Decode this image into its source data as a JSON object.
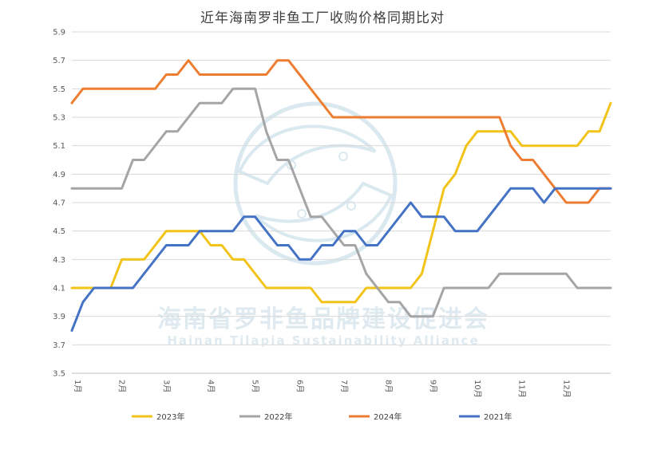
{
  "chart_data": {
    "type": "line",
    "title": "近年海南罗非鱼工厂收购价格同期比对",
    "xlabel": "",
    "ylabel": "",
    "ylim": [
      3.5,
      5.9
    ],
    "yticks": [
      "3.5",
      "3.7",
      "3.9",
      "4.1",
      "4.3",
      "4.5",
      "4.7",
      "4.9",
      "5.1",
      "5.3",
      "5.5",
      "5.7",
      "5.9"
    ],
    "x_tick_labels": [
      "1月",
      "2月",
      "3月",
      "4月",
      "5月",
      "6月",
      "7月",
      "8月",
      "9月",
      "10月",
      "11月",
      "12月"
    ],
    "x_unit": "week",
    "grid": true,
    "legend_position": "bottom",
    "series": [
      {
        "name": "2023年",
        "color": "#f2c318",
        "points": [
          [
            0,
            4.1
          ],
          [
            2.0,
            4.1
          ],
          [
            3.5,
            4.1
          ],
          [
            4.5,
            4.3
          ],
          [
            6.5,
            4.3
          ],
          [
            8.5,
            4.5
          ],
          [
            11.5,
            4.5
          ],
          [
            12.5,
            4.4
          ],
          [
            13.5,
            4.4
          ],
          [
            14.5,
            4.3
          ],
          [
            15.5,
            4.3
          ],
          [
            17.5,
            4.1
          ],
          [
            21.5,
            4.1
          ],
          [
            22.5,
            4.0
          ],
          [
            25.5,
            4.0
          ],
          [
            26.5,
            4.1
          ],
          [
            30.5,
            4.1
          ],
          [
            31.5,
            4.2
          ],
          [
            33.5,
            4.8
          ],
          [
            34.5,
            4.9
          ],
          [
            35.5,
            5.1
          ],
          [
            36.5,
            5.2
          ],
          [
            39.5,
            5.2
          ],
          [
            40.5,
            5.1
          ],
          [
            45.5,
            5.1
          ],
          [
            46.5,
            5.2
          ],
          [
            47.5,
            5.2
          ],
          [
            48.5,
            5.4
          ]
        ]
      },
      {
        "name": "2022年",
        "color": "#a5a5a5",
        "points": [
          [
            0,
            4.8
          ],
          [
            4.5,
            4.8
          ],
          [
            5.5,
            5.0
          ],
          [
            6.5,
            5.0
          ],
          [
            8.5,
            5.2
          ],
          [
            9.5,
            5.2
          ],
          [
            11.5,
            5.4
          ],
          [
            13.5,
            5.4
          ],
          [
            14.5,
            5.5
          ],
          [
            16.5,
            5.5
          ],
          [
            17.5,
            5.2
          ],
          [
            18.5,
            5.0
          ],
          [
            19.5,
            5.0
          ],
          [
            20.5,
            4.8
          ],
          [
            21.5,
            4.6
          ],
          [
            22.5,
            4.6
          ],
          [
            24.5,
            4.4
          ],
          [
            25.5,
            4.4
          ],
          [
            26.5,
            4.2
          ],
          [
            28.5,
            4.0
          ],
          [
            29.5,
            4.0
          ],
          [
            30.5,
            3.9
          ],
          [
            32.5,
            3.9
          ],
          [
            33.5,
            4.1
          ],
          [
            37.5,
            4.1
          ],
          [
            38.5,
            4.2
          ],
          [
            44.5,
            4.2
          ],
          [
            45.5,
            4.1
          ],
          [
            48.5,
            4.1
          ]
        ]
      },
      {
        "name": "2024年",
        "color": "#ed7d31",
        "points": [
          [
            0,
            5.4
          ],
          [
            1,
            5.5
          ],
          [
            7.5,
            5.5
          ],
          [
            8.5,
            5.6
          ],
          [
            9.5,
            5.6
          ],
          [
            10.5,
            5.7
          ],
          [
            11.5,
            5.6
          ],
          [
            17.5,
            5.6
          ],
          [
            18.5,
            5.7
          ],
          [
            19.5,
            5.7
          ],
          [
            23.5,
            5.3
          ],
          [
            38.5,
            5.3
          ],
          [
            39.5,
            5.1
          ],
          [
            40.5,
            5.0
          ],
          [
            41.5,
            5.0
          ],
          [
            43.5,
            4.8
          ],
          [
            44.5,
            4.7
          ],
          [
            46.5,
            4.7
          ],
          [
            47.5,
            4.8
          ],
          [
            48.5,
            4.8
          ]
        ]
      },
      {
        "name": "2021年",
        "color": "#4472c4",
        "points": [
          [
            0,
            3.8
          ],
          [
            1,
            4.0
          ],
          [
            2,
            4.1
          ],
          [
            5.5,
            4.1
          ],
          [
            8.5,
            4.4
          ],
          [
            10.5,
            4.4
          ],
          [
            11.5,
            4.5
          ],
          [
            14.5,
            4.5
          ],
          [
            15.5,
            4.6
          ],
          [
            16.5,
            4.6
          ],
          [
            18.5,
            4.4
          ],
          [
            19.5,
            4.4
          ],
          [
            20.5,
            4.3
          ],
          [
            21.5,
            4.3
          ],
          [
            22.5,
            4.4
          ],
          [
            23.5,
            4.4
          ],
          [
            24.5,
            4.5
          ],
          [
            25.5,
            4.5
          ],
          [
            26.5,
            4.4
          ],
          [
            27.5,
            4.4
          ],
          [
            30.5,
            4.7
          ],
          [
            31.5,
            4.6
          ],
          [
            33.5,
            4.6
          ],
          [
            34.5,
            4.5
          ],
          [
            36.5,
            4.5
          ],
          [
            39.5,
            4.8
          ],
          [
            41.5,
            4.8
          ],
          [
            42.5,
            4.7
          ],
          [
            43.5,
            4.8
          ],
          [
            48.5,
            4.8
          ]
        ]
      }
    ]
  },
  "watermark": {
    "cn": "海南省罗非鱼品牌建设促进会",
    "en": "Hainan Tilapia Sustainability Alliance"
  }
}
